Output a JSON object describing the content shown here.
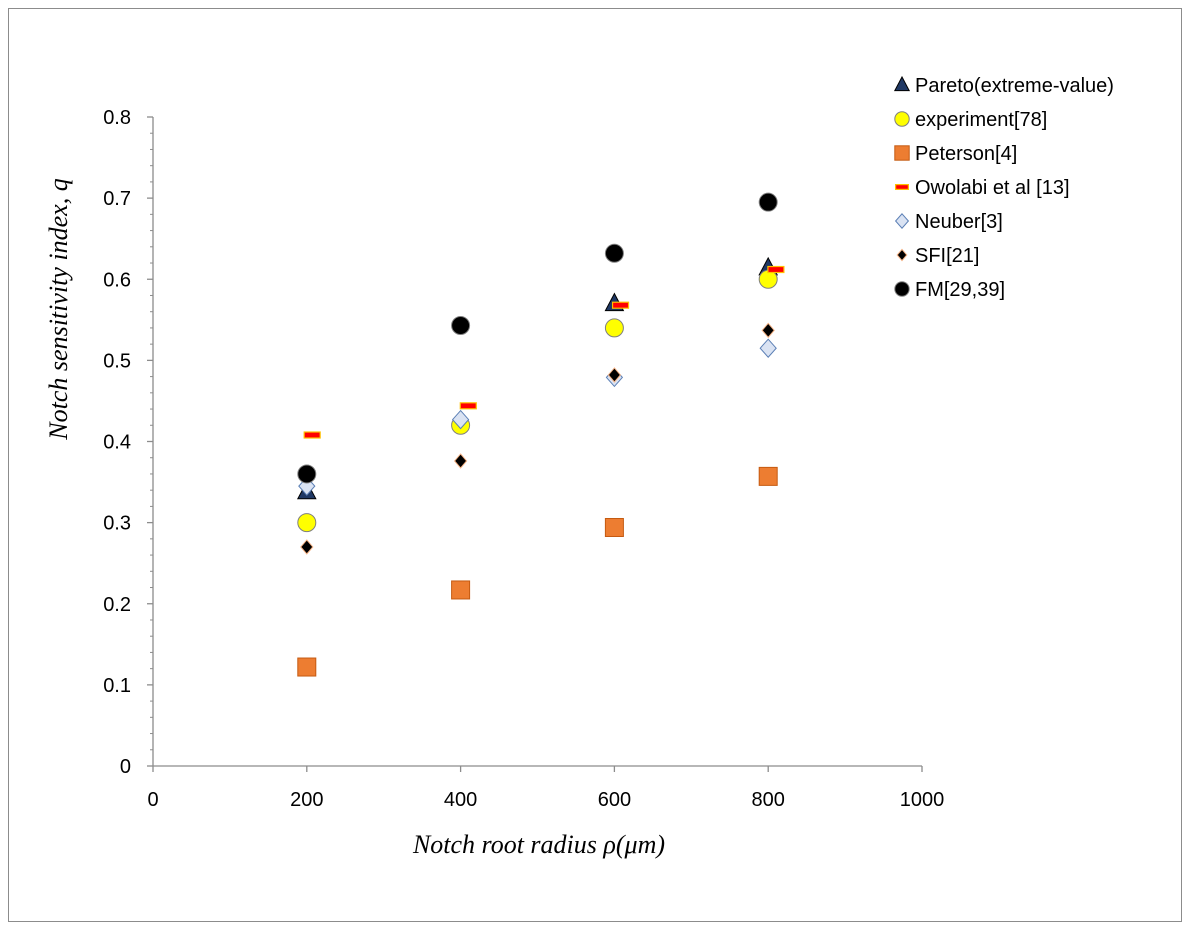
{
  "chart_data": {
    "type": "scatter",
    "title": "",
    "xlabel": "Notch root radius ρ(μm)",
    "ylabel": "Notch sensitivity index, q",
    "xlim": [
      0,
      1000
    ],
    "ylim": [
      0,
      0.8
    ],
    "x_ticks": [
      "0",
      "200",
      "400",
      "600",
      "800",
      "1000"
    ],
    "y_ticks": [
      "0",
      "0.1",
      "0.2",
      "0.3",
      "0.4",
      "0.5",
      "0.6",
      "0.7",
      "0.8"
    ],
    "grid": false,
    "legend_position": "top-right",
    "series": [
      {
        "name": "Pareto(extreme-value)",
        "marker": "triangle",
        "color": "#1f3864",
        "points": [
          [
            200,
            0.338
          ],
          [
            600,
            0.57
          ],
          [
            800,
            0.614
          ]
        ]
      },
      {
        "name": "experiment[78]",
        "marker": "circle",
        "color": "#ffff00",
        "points": [
          [
            200,
            0.3
          ],
          [
            400,
            0.42
          ],
          [
            600,
            0.54
          ],
          [
            800,
            0.6
          ]
        ]
      },
      {
        "name": "Peterson[4]",
        "marker": "square",
        "color": "#ed7d31",
        "points": [
          [
            200,
            0.122
          ],
          [
            400,
            0.217
          ],
          [
            600,
            0.294
          ],
          [
            800,
            0.357
          ]
        ]
      },
      {
        "name": "Owolabi et al [13]",
        "marker": "dash",
        "color": "#ff0000",
        "points": [
          [
            207,
            0.408
          ],
          [
            410,
            0.444
          ],
          [
            608,
            0.568
          ],
          [
            810,
            0.612
          ]
        ]
      },
      {
        "name": "Neuber[3]",
        "marker": "diamond",
        "color": "#dae3f3",
        "points": [
          [
            200,
            0.345
          ],
          [
            400,
            0.427
          ],
          [
            600,
            0.479
          ],
          [
            800,
            0.515
          ]
        ]
      },
      {
        "name": "SFI[21]",
        "marker": "diamond-small",
        "color": "#000000",
        "points": [
          [
            200,
            0.27
          ],
          [
            400,
            0.376
          ],
          [
            600,
            0.482
          ],
          [
            800,
            0.537
          ]
        ]
      },
      {
        "name": "FM[29,39]",
        "marker": "circle-black",
        "color": "#000000",
        "points": [
          [
            200,
            0.36
          ],
          [
            400,
            0.543
          ],
          [
            600,
            0.632
          ],
          [
            800,
            0.695
          ]
        ]
      }
    ]
  }
}
